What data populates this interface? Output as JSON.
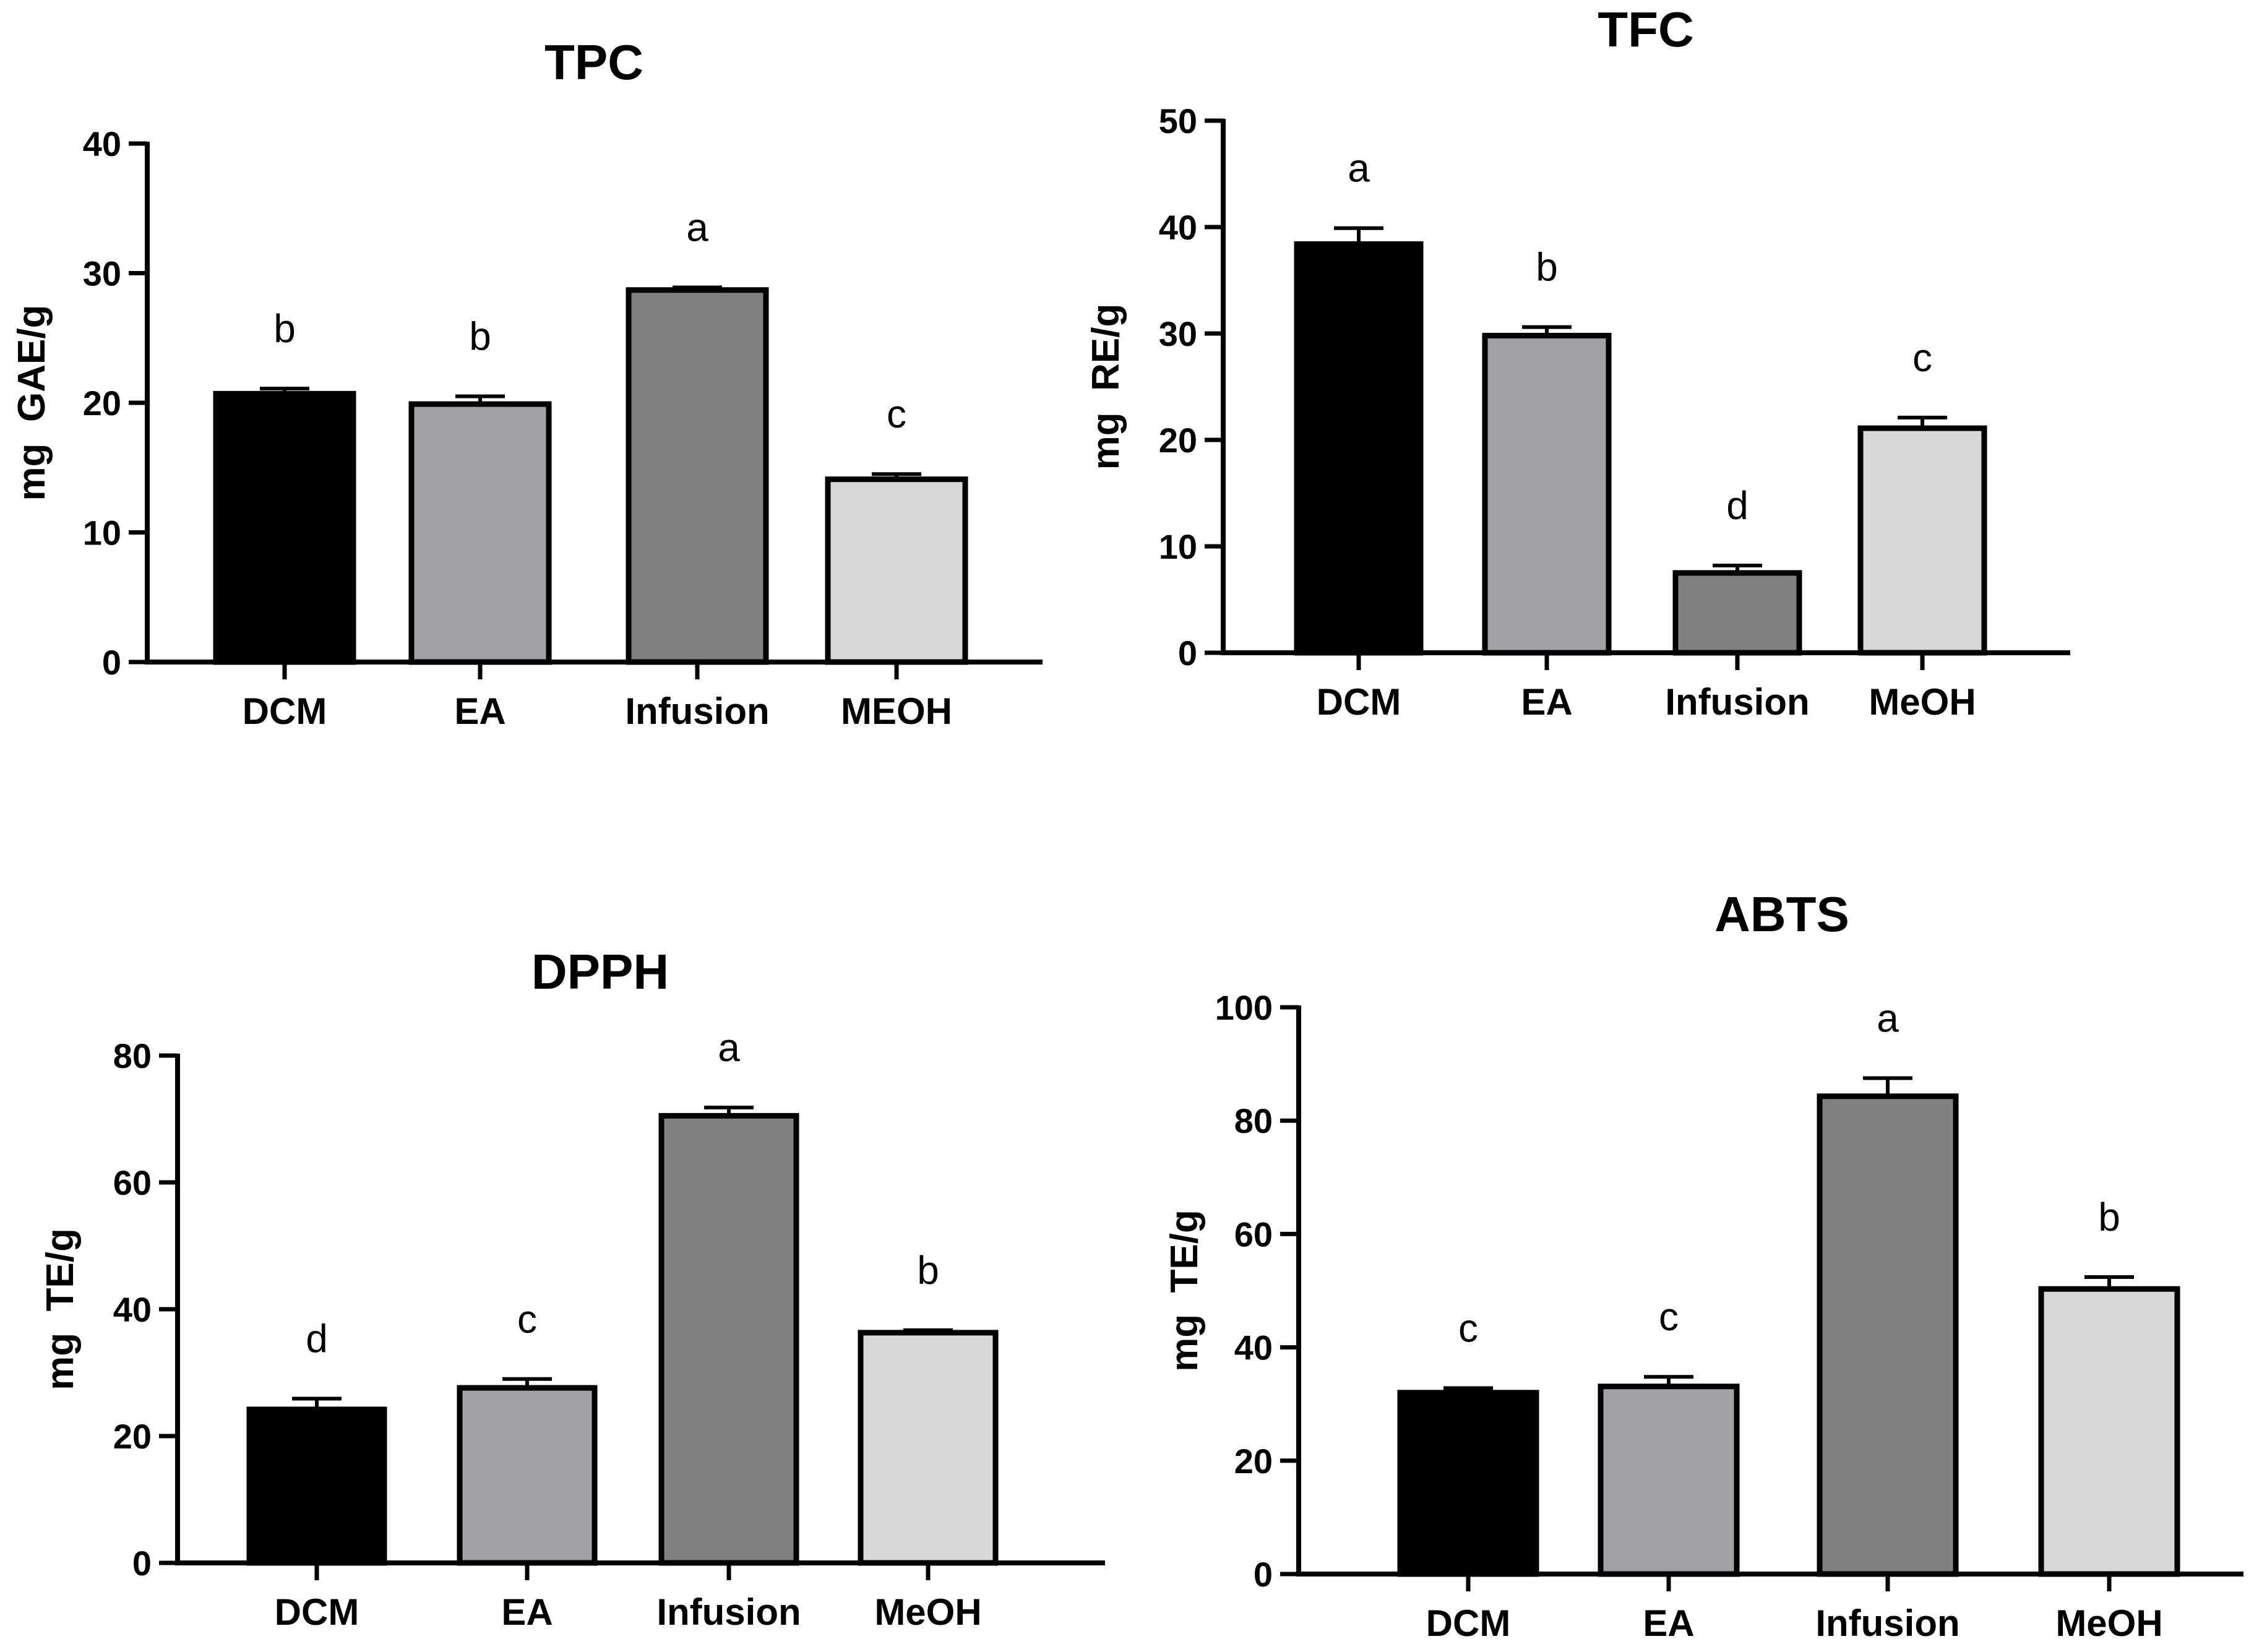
{
  "chart_data": [
    {
      "type": "bar",
      "title": "TPC",
      "ylabel": "mg GAE/g",
      "xlabel": "",
      "ylim": [
        0,
        40
      ],
      "yticks": [
        0,
        10,
        20,
        30,
        40
      ],
      "categories": [
        "DCM",
        "EA",
        "Infusion",
        "MEOH"
      ],
      "values": [
        20.7,
        19.9,
        28.7,
        14.1
      ],
      "errors": [
        0.4,
        0.6,
        0.2,
        0.4
      ],
      "significance": [
        "b",
        "b",
        "a",
        "c"
      ],
      "colors": [
        "#000000",
        "#a0a2a6",
        "#808080",
        "#d7d7d7"
      ]
    },
    {
      "type": "bar",
      "title": "TFC",
      "ylabel": "mg RE/g",
      "xlabel": "",
      "ylim": [
        0,
        50
      ],
      "yticks": [
        0,
        10,
        20,
        30,
        40,
        50
      ],
      "categories": [
        "DCM",
        "EA",
        "Infusion",
        "MeOH"
      ],
      "values": [
        38.4,
        29.8,
        7.5,
        21.1
      ],
      "errors": [
        1.5,
        0.8,
        0.7,
        1.0
      ],
      "significance": [
        "a",
        "b",
        "d",
        "c"
      ],
      "colors": [
        "#000000",
        "#a0a2a6",
        "#808080",
        "#d7d7d7"
      ]
    },
    {
      "type": "bar",
      "title": "DPPH",
      "ylabel": "mg TE/g",
      "xlabel": "",
      "ylim": [
        0,
        80
      ],
      "yticks": [
        0,
        20,
        40,
        60,
        80
      ],
      "categories": [
        "DCM",
        "EA",
        "Infusion",
        "MeOH"
      ],
      "values": [
        24.2,
        27.6,
        70.5,
        36.3
      ],
      "errors": [
        1.7,
        1.4,
        1.3,
        0.4
      ],
      "significance": [
        "d",
        "c",
        "a",
        "b"
      ],
      "colors": [
        "#000000",
        "#a0a2a6",
        "#808080",
        "#d7d7d7"
      ]
    },
    {
      "type": "bar",
      "title": "ABTS",
      "ylabel": "mg TE/g",
      "xlabel": "",
      "ylim": [
        0,
        100
      ],
      "yticks": [
        0,
        20,
        40,
        60,
        80,
        100
      ],
      "categories": [
        "DCM",
        "EA",
        "Infusion",
        "MeOH"
      ],
      "values": [
        32.0,
        33.1,
        84.3,
        50.3
      ],
      "errors": [
        0.8,
        1.7,
        3.2,
        2.1
      ],
      "significance": [
        "c",
        "c",
        "a",
        "b"
      ],
      "colors": [
        "#000000",
        "#a0a2a6",
        "#808080",
        "#d7d7d7"
      ]
    }
  ]
}
